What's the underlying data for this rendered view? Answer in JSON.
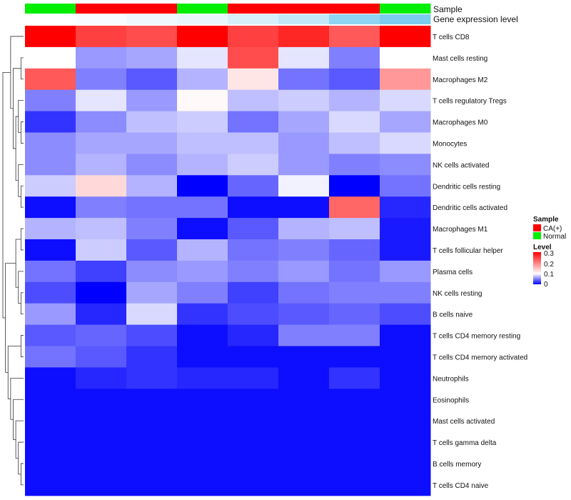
{
  "chart_data": {
    "type": "heatmap",
    "title": "",
    "annotation_rows": [
      {
        "label": "Sample",
        "values": [
          "Normal",
          "CA(+)",
          "CA(+)",
          "Normal",
          "CA(+)",
          "CA(+)",
          "CA(+)",
          "Normal"
        ]
      },
      {
        "label": "Gene expression level",
        "values": [
          0.0,
          0.05,
          0.12,
          0.15,
          0.28,
          0.42,
          0.78,
          0.92
        ]
      }
    ],
    "sample_colors": {
      "CA(+)": "#ff0000",
      "Normal": "#00ee00"
    },
    "expression_colors": {
      "low": "#ffffff",
      "high": "#6fc8ee"
    },
    "rows": [
      "T cells CD8",
      "Mast cells resting",
      "Macrophages M2",
      "T cells regulatory  Tregs",
      "Macrophages M0",
      "Monocytes",
      "NK cells activated",
      "Dendritic cells resting",
      "Dendritic cells activated",
      "Macrophages M1",
      "T cells follicular helper",
      "Plasma cells",
      "NK cells resting",
      "B cells naive",
      "T cells CD4 memory resting",
      "T cells CD4 memory activated",
      "Neutrophils",
      "Eosinophils",
      "Mast cells activated",
      "T cells gamma delta",
      "B cells memory",
      "T cells CD4 naive"
    ],
    "values": [
      [
        0.3,
        0.25,
        0.24,
        0.3,
        0.25,
        0.27,
        0.23,
        0.3
      ],
      [
        0.1,
        0.06,
        0.065,
        0.09,
        0.24,
        0.09,
        0.05,
        0.1
      ],
      [
        0.23,
        0.05,
        0.035,
        0.07,
        0.12,
        0.045,
        0.035,
        0.18
      ],
      [
        0.05,
        0.09,
        0.06,
        0.105,
        0.075,
        0.08,
        0.07,
        0.085
      ],
      [
        0.02,
        0.055,
        0.075,
        0.08,
        0.045,
        0.065,
        0.085,
        0.065
      ],
      [
        0.055,
        0.065,
        0.065,
        0.075,
        0.075,
        0.06,
        0.075,
        0.085
      ],
      [
        0.055,
        0.07,
        0.055,
        0.07,
        0.08,
        0.06,
        0.05,
        0.055
      ],
      [
        0.08,
        0.13,
        0.07,
        0.0,
        0.04,
        0.095,
        0.0,
        0.045
      ],
      [
        0.005,
        0.05,
        0.045,
        0.045,
        0.005,
        0.005,
        0.22,
        0.015
      ],
      [
        0.07,
        0.075,
        0.05,
        0.005,
        0.035,
        0.07,
        0.075,
        0.01
      ],
      [
        0.005,
        0.08,
        0.035,
        0.07,
        0.045,
        0.05,
        0.04,
        0.01
      ],
      [
        0.045,
        0.025,
        0.055,
        0.06,
        0.05,
        0.06,
        0.045,
        0.06
      ],
      [
        0.03,
        0.0,
        0.065,
        0.05,
        0.025,
        0.045,
        0.05,
        0.05
      ],
      [
        0.06,
        0.015,
        0.085,
        0.02,
        0.03,
        0.035,
        0.04,
        0.03
      ],
      [
        0.035,
        0.04,
        0.03,
        0.005,
        0.015,
        0.05,
        0.05,
        0.005
      ],
      [
        0.045,
        0.035,
        0.02,
        0.005,
        0.005,
        0.005,
        0.005,
        0.005
      ],
      [
        0.005,
        0.015,
        0.02,
        0.015,
        0.015,
        0.005,
        0.02,
        0.005
      ],
      [
        0.005,
        0.005,
        0.005,
        0.005,
        0.005,
        0.005,
        0.005,
        0.005
      ],
      [
        0.005,
        0.005,
        0.005,
        0.005,
        0.005,
        0.005,
        0.005,
        0.005
      ],
      [
        0.005,
        0.005,
        0.005,
        0.005,
        0.005,
        0.005,
        0.005,
        0.005
      ],
      [
        0.005,
        0.005,
        0.005,
        0.005,
        0.005,
        0.005,
        0.005,
        0.005
      ],
      [
        0.005,
        0.005,
        0.005,
        0.005,
        0.005,
        0.005,
        0.005,
        0.005
      ]
    ],
    "color_scale": {
      "min": 0,
      "mid": 0.1,
      "max": 0.3,
      "low": "#0000ff",
      "midColor": "#ffffff",
      "high": "#ff0000"
    },
    "legend": {
      "sample_title": "Sample",
      "sample_entries": [
        "CA(+)",
        "Normal"
      ],
      "level_title": "Level",
      "level_ticks": [
        "0.3",
        "0.2",
        "0.1",
        "0"
      ]
    },
    "dendrogram": "left"
  }
}
